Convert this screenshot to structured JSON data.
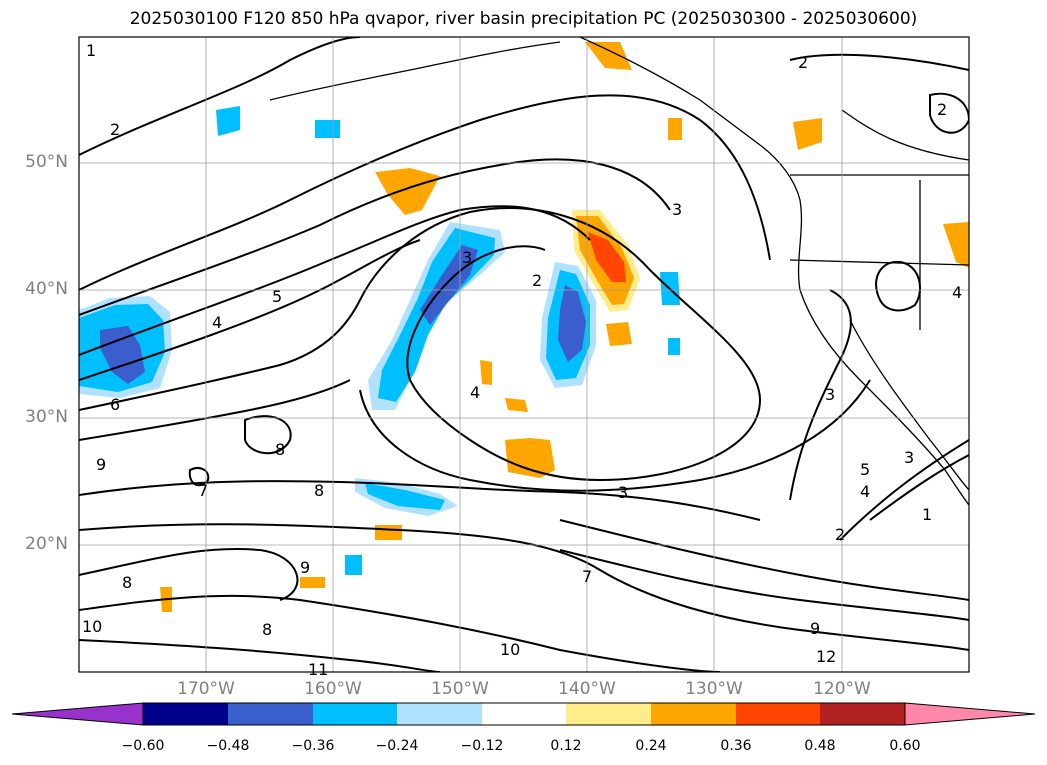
{
  "title": "2025030100 F120 850 hPa qvapor, river basin precipitation PC (2025030300 - 2025030600)",
  "lat_labels": [
    "50°N",
    "40°N",
    "30°N",
    "20°N"
  ],
  "lon_labels": [
    "170°W",
    "160°W",
    "150°W",
    "140°W",
    "130°W",
    "120°W"
  ],
  "contour_labels": [
    "1",
    "2",
    "2",
    "3",
    "2",
    "3",
    "4",
    "5",
    "6",
    "4",
    "8",
    "9",
    "7",
    "8",
    "3",
    "3",
    "2",
    "1",
    "4",
    "5",
    "9",
    "8",
    "7",
    "10",
    "8",
    "9",
    "10",
    "11",
    "12",
    "2",
    "3",
    "4"
  ],
  "colorbar": {
    "colors": [
      "#9932cc",
      "#00008b",
      "#3a5fcd",
      "#00bfff",
      "#b0e2ff",
      "#ffffff",
      "#ffec8b",
      "#ffa500",
      "#ff4500",
      "#b22222",
      "#ff88aa"
    ],
    "ticks": [
      "−0.60",
      "−0.48",
      "−0.36",
      "−0.24",
      "−0.12",
      "0.12",
      "0.24",
      "0.36",
      "0.48",
      "0.60"
    ]
  },
  "colors": {
    "coast": "#000000",
    "grid": "#a0a0a0",
    "negative_light": "#b0e2ff",
    "negative_mid": "#00bfff",
    "negative_dark": "#3a5fcd",
    "positive_light": "#ffec8b",
    "positive_mid": "#ffa500",
    "positive_dark": "#ff4500"
  }
}
